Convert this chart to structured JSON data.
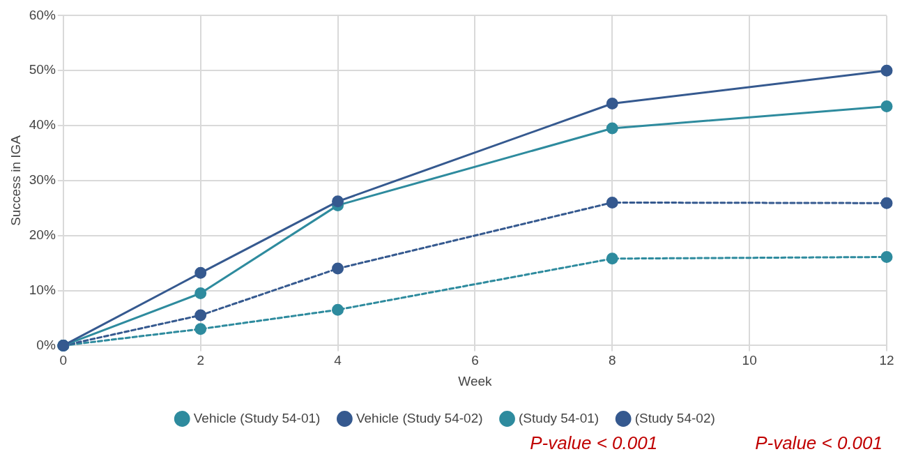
{
  "chart_data": {
    "type": "line",
    "xlabel": "Week",
    "ylabel": "Success in IGA",
    "x": [
      0,
      2,
      4,
      8,
      12
    ],
    "series": [
      {
        "name": "Vehicle (Study 54-01)",
        "color": "#2e8b9e",
        "line_style": "dashed",
        "values": [
          0,
          3,
          6.5,
          15.8,
          16.1
        ]
      },
      {
        "name": "Vehicle (Study 54-02)",
        "color": "#35598f",
        "line_style": "dashed",
        "values": [
          0,
          5.5,
          14,
          26,
          25.9
        ]
      },
      {
        "name": "(Study 54-01)",
        "color": "#2e8b9e",
        "line_style": "solid",
        "values": [
          0,
          9.5,
          25.5,
          39.5,
          43.5
        ]
      },
      {
        "name": "(Study 54-02)",
        "color": "#35598f",
        "line_style": "solid",
        "values": [
          0,
          13.2,
          26.2,
          44,
          50
        ]
      }
    ],
    "xlim": [
      0,
      12
    ],
    "xticks": [
      0,
      2,
      4,
      6,
      8,
      10,
      12
    ],
    "ylim": [
      0,
      60
    ],
    "yticks": [
      {
        "value": 0,
        "label": "0%"
      },
      {
        "value": 10,
        "label": "10%"
      },
      {
        "value": 20,
        "label": "20%"
      },
      {
        "value": 30,
        "label": "30%"
      },
      {
        "value": 40,
        "label": "40%"
      },
      {
        "value": 50,
        "label": "50%"
      },
      {
        "value": 60,
        "label": "60%"
      }
    ],
    "grid": true,
    "legend": "bottom",
    "marker": "circle",
    "annotations": [
      "P-value < 0.001",
      "P-value < 0.001"
    ]
  }
}
